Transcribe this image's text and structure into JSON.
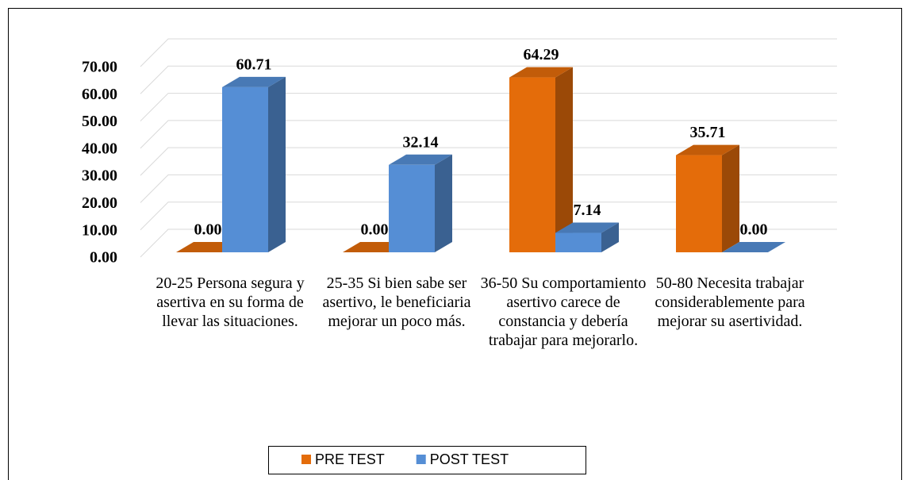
{
  "chart_data": {
    "type": "bar3d",
    "categories": [
      "20-25 Persona segura y asertiva en su forma de llevar las situaciones.",
      "25-35 Si bien sabe ser asertivo, le beneficiaria mejorar un poco más.",
      "36-50 Su comportamiento asertivo carece de constancia y debería trabajar para mejorarlo.",
      "50-80 Necesita trabajar considerablemente para mejorar su asertividad."
    ],
    "series": [
      {
        "name": "PRE TEST",
        "color": "#e46c0a",
        "values": [
          0,
          0,
          64.29,
          35.71
        ],
        "value_labels": [
          "0.00",
          "0.00",
          "64.29",
          "35.71"
        ]
      },
      {
        "name": "POST TEST",
        "color": "#558ed5",
        "values": [
          60.71,
          32.14,
          7.14,
          0
        ],
        "value_labels": [
          "60.71",
          "32.14",
          "7.14",
          "0.00"
        ]
      }
    ],
    "ylim": [
      0,
      70
    ],
    "yticks": [
      {
        "value": 0,
        "label": "0.00"
      },
      {
        "value": 10,
        "label": "10.00"
      },
      {
        "value": 20,
        "label": "20.00"
      },
      {
        "value": 30,
        "label": "30.00"
      },
      {
        "value": 40,
        "label": "40.00"
      },
      {
        "value": 50,
        "label": "50.00"
      },
      {
        "value": 60,
        "label": "60.00"
      },
      {
        "value": 70,
        "label": "70.00"
      }
    ],
    "grid": true,
    "legend": "bottom"
  }
}
